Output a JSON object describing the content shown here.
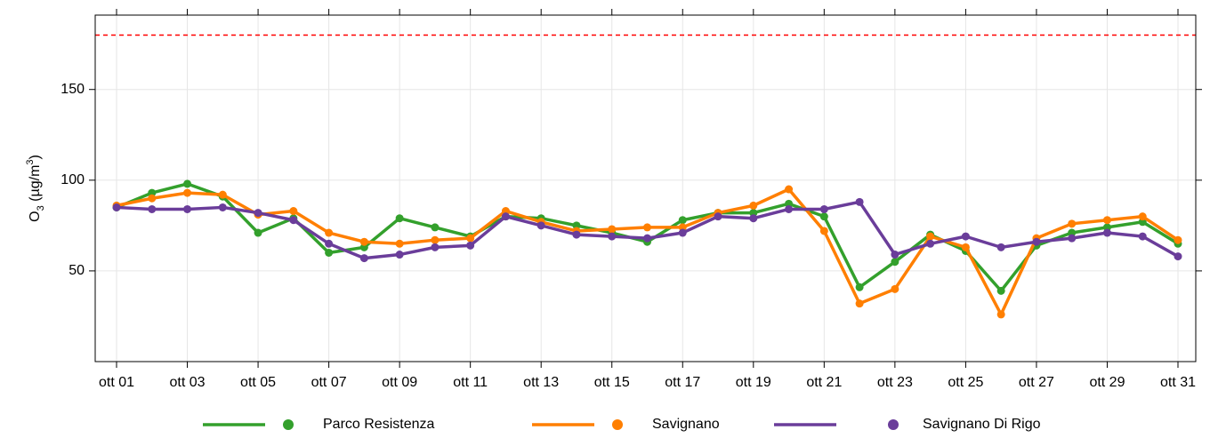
{
  "chart_data": {
    "type": "line",
    "y_label": {
      "base": "O",
      "sub": "3",
      "unit_open": " (µg/m",
      "sup": "3",
      "unit_close": ")"
    },
    "categories": [
      "ott 01",
      null,
      "ott 03",
      null,
      "ott 05",
      null,
      "ott 07",
      null,
      "ott 09",
      null,
      "ott 11",
      null,
      "ott 13",
      null,
      "ott 15",
      null,
      "ott 17",
      null,
      "ott 19",
      null,
      "ott 21",
      null,
      "ott 23",
      null,
      "ott 25",
      null,
      "ott 27",
      null,
      "ott 29",
      null,
      "ott 31"
    ],
    "series": [
      {
        "name": "Parco Resistenza",
        "color": "#33a02c",
        "values": [
          85,
          93,
          98,
          91,
          71,
          79,
          60,
          63,
          79,
          74,
          69,
          80,
          79,
          75,
          71,
          66,
          78,
          82,
          82,
          87,
          80,
          41,
          55,
          70,
          61,
          39,
          64,
          71,
          74,
          77,
          65
        ]
      },
      {
        "name": "Savignano",
        "color": "#ff7f00",
        "values": [
          86,
          90,
          93,
          92,
          81,
          83,
          71,
          66,
          65,
          67,
          68,
          83,
          77,
          72,
          73,
          74,
          74,
          82,
          86,
          95,
          72,
          32,
          40,
          69,
          63,
          26,
          68,
          76,
          78,
          80,
          67
        ]
      },
      {
        "name": "Savignano Di Rigo",
        "color": "#6a3d9a",
        "values": [
          85,
          84,
          84,
          85,
          82,
          78,
          65,
          57,
          59,
          63,
          64,
          80,
          75,
          70,
          69,
          68,
          71,
          80,
          79,
          84,
          84,
          88,
          59,
          65,
          69,
          63,
          66,
          68,
          71,
          69,
          58
        ]
      }
    ],
    "reference_line": {
      "value": 180,
      "color": "#ff0000"
    },
    "ylim": [
      0,
      191
    ],
    "yticks": [
      50,
      100,
      150
    ],
    "grid": true,
    "legend": "bottom"
  }
}
